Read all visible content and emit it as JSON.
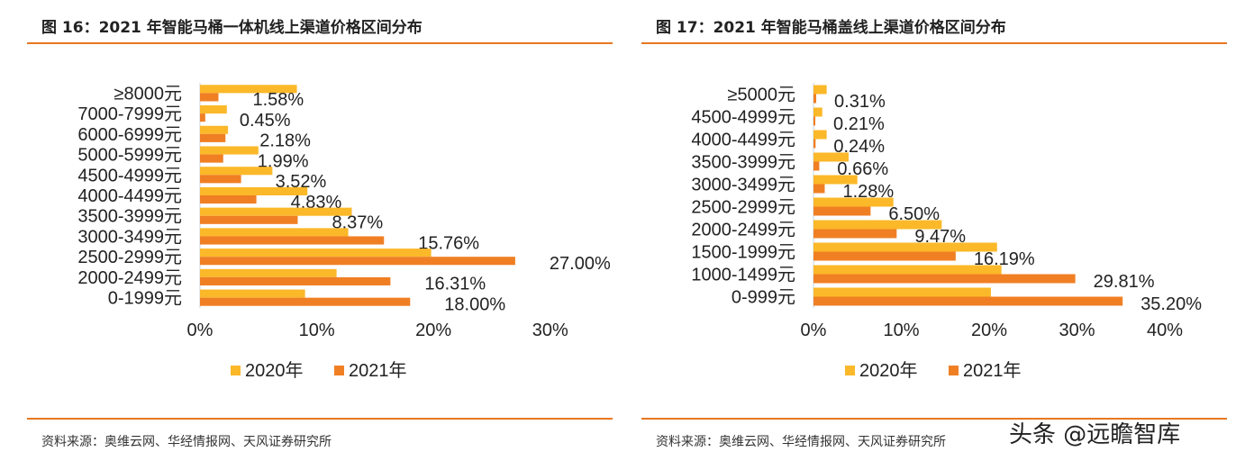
{
  "colors": {
    "y2020": "#fbb829",
    "y2021": "#f07f24",
    "rule": "#e87722"
  },
  "watermark": "头条 @远瞻智库",
  "chart_data": [
    {
      "type": "bar",
      "orientation": "horizontal",
      "title": "图 16：2021 年智能马桶一体机线上渠道价格区间分布",
      "source": "资料来源：奥维云网、华经情报网、天风证券研究所",
      "categories": [
        "≥8000元",
        "7000-7999元",
        "6000-6999元",
        "5000-5999元",
        "4500-4999元",
        "4000-4499元",
        "3500-3999元",
        "3000-3499元",
        "2500-2999元",
        "2000-2499元",
        "0-1999元"
      ],
      "series": [
        {
          "name": "2020年",
          "values": [
            8.3,
            2.3,
            2.4,
            5.0,
            6.2,
            9.2,
            13.0,
            12.7,
            19.8,
            11.7,
            9.0
          ]
        },
        {
          "name": "2021年",
          "values": [
            1.58,
            0.45,
            2.18,
            1.99,
            3.52,
            4.83,
            8.37,
            15.76,
            27.0,
            16.31,
            18.0
          ]
        }
      ],
      "data_labels": [
        "1.58%",
        "0.45%",
        "2.18%",
        "1.99%",
        "3.52%",
        "4.83%",
        "8.37%",
        "15.76%",
        "27.00%",
        "16.31%",
        "18.00%"
      ],
      "xticks": [
        "0%",
        "10%",
        "20%",
        "30%"
      ],
      "xlim": [
        0,
        30
      ],
      "grid": false,
      "legend": "bottom"
    },
    {
      "type": "bar",
      "orientation": "horizontal",
      "title": "图 17：2021 年智能马桶盖线上渠道价格区间分布",
      "source": "资料来源：奥维云网、华经情报网、天风证券研究所",
      "categories": [
        "≥5000元",
        "4500-4999元",
        "4000-4499元",
        "3500-3999元",
        "3000-3499元",
        "2500-2999元",
        "2000-2499元",
        "1500-1999元",
        "1000-1499元",
        "0-999元"
      ],
      "series": [
        {
          "name": "2020年",
          "values": [
            1.5,
            1.0,
            1.5,
            4.0,
            5.0,
            9.1,
            14.6,
            20.9,
            21.4,
            20.2
          ]
        },
        {
          "name": "2021年",
          "values": [
            0.31,
            0.21,
            0.24,
            0.66,
            1.28,
            6.5,
            9.47,
            16.19,
            29.81,
            35.2
          ]
        }
      ],
      "data_labels": [
        "0.31%",
        "0.21%",
        "0.24%",
        "0.66%",
        "1.28%",
        "6.50%",
        "9.47%",
        "16.19%",
        "29.81%",
        "35.20%"
      ],
      "xticks": [
        "0%",
        "10%",
        "20%",
        "30%",
        "40%"
      ],
      "xlim": [
        0,
        40
      ],
      "grid": false,
      "legend": "bottom"
    }
  ]
}
